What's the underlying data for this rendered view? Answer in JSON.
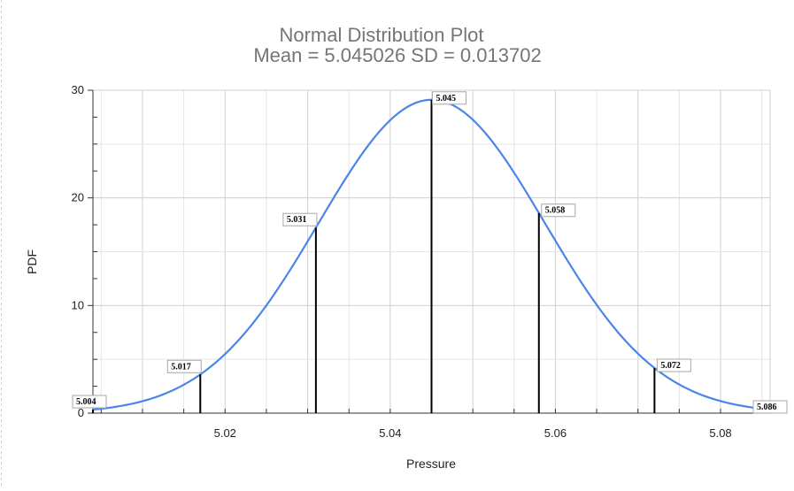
{
  "chart_data": {
    "type": "line",
    "title": "Normal Distribution Plot",
    "subtitle": "Mean = 5.045026 SD = 0.013702",
    "xlabel": "Pressure",
    "ylabel": "PDF",
    "mean": 5.045026,
    "sd": 0.013702,
    "xlim": [
      5.004,
      5.086
    ],
    "ylim": [
      0,
      30
    ],
    "x_ticks": [
      5.02,
      5.04,
      5.06,
      5.08
    ],
    "x_tick_labels": [
      "5.02",
      "5.04",
      "5.06",
      "5.08"
    ],
    "y_ticks": [
      0,
      10,
      20,
      30
    ],
    "y_tick_labels": [
      "0",
      "10",
      "20",
      "30"
    ],
    "grid": true,
    "series": [
      {
        "color": "#4a86e8",
        "curve": "normal-pdf"
      }
    ],
    "markers": [
      {
        "x": 5.004,
        "label": "5.004"
      },
      {
        "x": 5.017,
        "label": "5.017"
      },
      {
        "x": 5.031,
        "label": "5.031"
      },
      {
        "x": 5.045,
        "label": "5.045"
      },
      {
        "x": 5.058,
        "label": "5.058"
      },
      {
        "x": 5.072,
        "label": "5.072"
      },
      {
        "x": 5.086,
        "label": "5.086"
      }
    ]
  }
}
